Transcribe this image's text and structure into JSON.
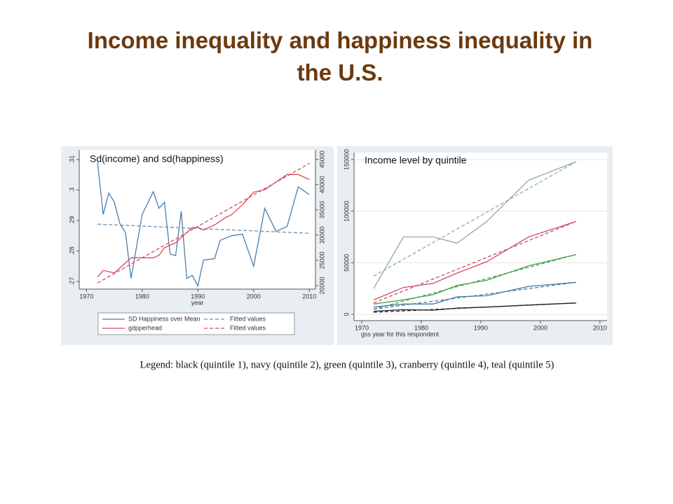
{
  "title": "Income inequality and happiness inequality in the U.S.",
  "note": "Legend: black (quintile 1), navy (quintile 2), green (quintile 3), cranberry (quintile 4), teal (quintile 5)",
  "chart_data": [
    {
      "type": "line",
      "title": "Sd(income) and sd(happiness)",
      "xlabel": "year",
      "xlim": [
        1968.7,
        2011.1
      ],
      "xticks": [
        1970,
        1980,
        1990,
        2000,
        2010
      ],
      "ylim": [
        0.2675,
        0.3132
      ],
      "yticks": [
        {
          "value": 0.27,
          "label": ".27"
        },
        {
          "value": 0.28,
          "label": ".28"
        },
        {
          "value": 0.29,
          "label": ".29"
        },
        {
          "value": 0.3,
          "label": ".3"
        },
        {
          "value": 0.31,
          "label": ".31"
        }
      ],
      "y2lim": [
        19300,
        46900
      ],
      "y2ticks": [
        20000,
        25000,
        30000,
        35000,
        40000,
        45000
      ],
      "legend": "bottom",
      "series": [
        {
          "name": "SD Happiness over Mean",
          "color": "#4d7ea8",
          "x": [
            1972,
            1973,
            1974,
            1975,
            1976,
            1977,
            1978,
            1980,
            1982,
            1983,
            1984,
            1985,
            1986,
            1987,
            1988,
            1989,
            1990,
            1991,
            1993,
            1994,
            1996,
            1998,
            2000,
            2002,
            2004,
            2006,
            2008,
            2010
          ],
          "values": [
            0.309,
            0.292,
            0.299,
            0.296,
            0.289,
            0.286,
            0.271,
            0.292,
            0.2995,
            0.294,
            0.296,
            0.279,
            0.2785,
            0.293,
            0.271,
            0.272,
            0.2685,
            0.277,
            0.2775,
            0.2835,
            0.285,
            0.2855,
            0.275,
            0.294,
            0.2865,
            0.288,
            0.301,
            0.2985
          ]
        },
        {
          "name": "Fitted values",
          "color": "#6c8fb0",
          "dash": true,
          "x": [
            1972,
            2010
          ],
          "values": [
            0.2888,
            0.2858
          ]
        },
        {
          "name": "gdpperhead",
          "color": "#d8485f",
          "axis": "y2",
          "x": [
            1972,
            1973,
            1975,
            1977,
            1978,
            1980,
            1982,
            1983,
            1984,
            1986,
            1988,
            1989,
            1990,
            1991,
            1993,
            1995,
            1996,
            1998,
            2000,
            2002,
            2004,
            2006,
            2008,
            2010
          ],
          "values": [
            21700,
            23000,
            22500,
            24500,
            25500,
            25500,
            25500,
            26000,
            27500,
            28500,
            30500,
            31500,
            31500,
            31000,
            32000,
            33500,
            34000,
            36000,
            38500,
            39000,
            40500,
            42000,
            42000,
            41000
          ]
        },
        {
          "name": "Fitted values",
          "color": "#d8485f",
          "dash": true,
          "axis": "y2",
          "x": [
            1972,
            2010
          ],
          "values": [
            20500,
            44200
          ]
        }
      ]
    },
    {
      "type": "line",
      "title": "Income level by quintile",
      "xlabel": "gss year for this respondent",
      "xlim": [
        1968.7,
        2011.2
      ],
      "xticks": [
        1970,
        1980,
        1990,
        2000,
        2010
      ],
      "ylim": [
        -6100,
        156800
      ],
      "yticks": [
        0,
        50000,
        100000,
        150000
      ],
      "series": [
        {
          "color": "#8fa9a6",
          "x": [
            1972,
            1977,
            1982,
            1986,
            1991,
            1998,
            2006
          ],
          "values": [
            25000,
            75000,
            75000,
            69000,
            90000,
            130000,
            148000
          ]
        },
        {
          "color": "#8fa9a6",
          "dash": true,
          "x": [
            1972,
            2006
          ],
          "values": [
            37000,
            148000
          ]
        },
        {
          "color": "#d04a60",
          "x": [
            1972,
            1977,
            1982,
            1986,
            1991,
            1998,
            2006
          ],
          "values": [
            14000,
            26000,
            30000,
            40000,
            51000,
            75000,
            90000
          ]
        },
        {
          "color": "#d04a60",
          "dash": true,
          "x": [
            1972,
            2006
          ],
          "values": [
            11000,
            90000
          ]
        },
        {
          "color": "#3fa14a",
          "x": [
            1972,
            1977,
            1982,
            1986,
            1991,
            1998,
            2006
          ],
          "values": [
            10000,
            14000,
            19000,
            28000,
            33000,
            47000,
            58000
          ]
        },
        {
          "color": "#3fa14a",
          "dash": true,
          "x": [
            1972,
            2006
          ],
          "values": [
            5000,
            58000
          ]
        },
        {
          "color": "#4a7aa0",
          "x": [
            1972,
            1977,
            1982,
            1986,
            1991,
            1998,
            2006
          ],
          "values": [
            7000,
            10000,
            10000,
            17000,
            18000,
            27000,
            31000
          ]
        },
        {
          "color": "#4a7aa0",
          "dash": true,
          "x": [
            1972,
            2006
          ],
          "values": [
            5000,
            31000
          ]
        },
        {
          "color": "#222222",
          "x": [
            1972,
            1977,
            1982,
            1986,
            1991,
            1998,
            2006
          ],
          "values": [
            3000,
            4500,
            4000,
            6000,
            7000,
            9000,
            11000
          ]
        },
        {
          "color": "#222222",
          "dash": true,
          "x": [
            1972,
            2006
          ],
          "values": [
            2000,
            11000
          ]
        }
      ]
    }
  ]
}
